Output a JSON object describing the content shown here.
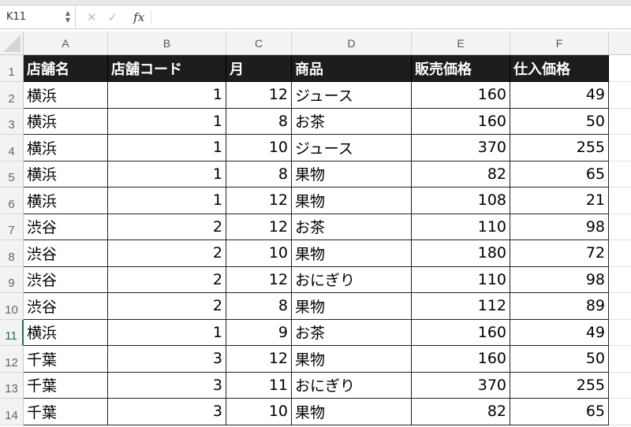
{
  "namebox": "K11",
  "formula_icons": {
    "cancel": "✕",
    "enter": "✓",
    "fx": "fx"
  },
  "formula_value": "",
  "columns": [
    "A",
    "B",
    "C",
    "D",
    "E",
    "F",
    ""
  ],
  "selected_row": 11,
  "header": [
    "店舗名",
    "店舗コード",
    "月",
    "商品",
    "販売価格",
    "仕入価格"
  ],
  "rows": [
    [
      "横浜",
      1,
      12,
      "ジュース",
      160,
      49
    ],
    [
      "横浜",
      1,
      8,
      "お茶",
      160,
      50
    ],
    [
      "横浜",
      1,
      10,
      "ジュース",
      370,
      255
    ],
    [
      "横浜",
      1,
      8,
      "果物",
      82,
      65
    ],
    [
      "横浜",
      1,
      12,
      "果物",
      108,
      21
    ],
    [
      "渋谷",
      2,
      12,
      "お茶",
      110,
      98
    ],
    [
      "渋谷",
      2,
      10,
      "果物",
      180,
      72
    ],
    [
      "渋谷",
      2,
      12,
      "おにぎり",
      110,
      98
    ],
    [
      "渋谷",
      2,
      8,
      "果物",
      112,
      89
    ],
    [
      "横浜",
      1,
      9,
      "お茶",
      160,
      49
    ],
    [
      "千葉",
      3,
      12,
      "果物",
      160,
      50
    ],
    [
      "千葉",
      3,
      11,
      "おにぎり",
      370,
      255
    ],
    [
      "千葉",
      3,
      10,
      "果物",
      82,
      65
    ]
  ]
}
